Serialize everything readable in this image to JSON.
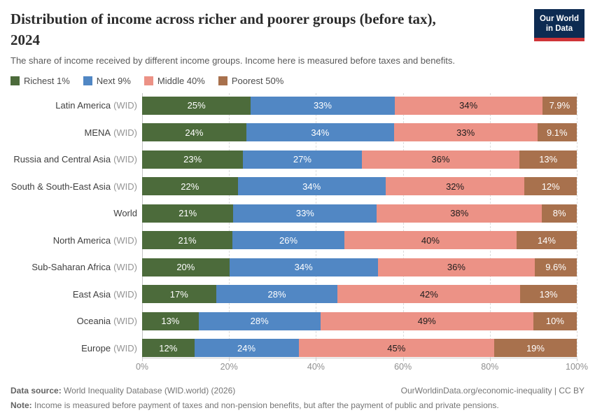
{
  "header": {
    "title_line1": "Distribution of income across richer and poorer groups (before tax),",
    "title_line2": "2024",
    "subtitle": "The share of income received by different income groups. Income here is measured before taxes and benefits.",
    "logo_line1": "Our World",
    "logo_line2": "in Data",
    "logo_bg_color": "#0d2b52",
    "logo_accent_color": "#cf3438"
  },
  "chart_data": {
    "type": "bar",
    "stacked": true,
    "orientation": "horizontal",
    "x_axis": {
      "min": 0,
      "max": 100,
      "ticks": [
        "0%",
        "20%",
        "40%",
        "60%",
        "80%",
        "100%"
      ],
      "grid": "dashed"
    },
    "legend_position": "top",
    "series": [
      {
        "name": "Richest 1%",
        "color": "#4c6b3b",
        "label_color": "#ffffff"
      },
      {
        "name": "Next 9%",
        "color": "#5187c4",
        "label_color": "#ffffff"
      },
      {
        "name": "Middle 40%",
        "color": "#ec9286",
        "label_color": "#1d1d1d"
      },
      {
        "name": "Poorest 50%",
        "color": "#a8714d",
        "label_color": "#ffffff"
      }
    ],
    "rows": [
      {
        "entity": "Latin America",
        "suffix": "(WID)",
        "values": [
          25,
          33,
          34,
          7.9
        ],
        "labels": [
          "25%",
          "33%",
          "34%",
          "7.9%"
        ]
      },
      {
        "entity": "MENA",
        "suffix": "(WID)",
        "values": [
          24,
          34,
          33,
          9.1
        ],
        "labels": [
          "24%",
          "34%",
          "33%",
          "9.1%"
        ]
      },
      {
        "entity": "Russia and Central Asia",
        "suffix": "(WID)",
        "values": [
          23,
          27,
          36,
          13
        ],
        "labels": [
          "23%",
          "27%",
          "36%",
          "13%"
        ]
      },
      {
        "entity": "South & South-East Asia",
        "suffix": "(WID)",
        "values": [
          22,
          34,
          32,
          12
        ],
        "labels": [
          "22%",
          "34%",
          "32%",
          "12%"
        ]
      },
      {
        "entity": "World",
        "suffix": "",
        "values": [
          21,
          33,
          38,
          8
        ],
        "labels": [
          "21%",
          "33%",
          "38%",
          "8%"
        ]
      },
      {
        "entity": "North America",
        "suffix": "(WID)",
        "values": [
          21,
          26,
          40,
          14
        ],
        "labels": [
          "21%",
          "26%",
          "40%",
          "14%"
        ]
      },
      {
        "entity": "Sub-Saharan Africa",
        "suffix": "(WID)",
        "values": [
          20,
          34,
          36,
          9.6
        ],
        "labels": [
          "20%",
          "34%",
          "36%",
          "9.6%"
        ]
      },
      {
        "entity": "East Asia",
        "suffix": "(WID)",
        "values": [
          17,
          28,
          42,
          13
        ],
        "labels": [
          "17%",
          "28%",
          "42%",
          "13%"
        ]
      },
      {
        "entity": "Oceania",
        "suffix": "(WID)",
        "values": [
          13,
          28,
          49,
          10
        ],
        "labels": [
          "13%",
          "28%",
          "49%",
          "10%"
        ]
      },
      {
        "entity": "Europe",
        "suffix": "(WID)",
        "values": [
          12,
          24,
          45,
          19
        ],
        "labels": [
          "12%",
          "24%",
          "45%",
          "19%"
        ]
      }
    ]
  },
  "footer": {
    "source_label": "Data source:",
    "source_text": " World Inequality Database (WID.world) (2026)",
    "link_text": "OurWorldinData.org/economic-inequality | CC BY",
    "note_label": "Note:",
    "note_text": " Income is measured before payment of taxes and non-pension benefits, but after the payment of public and private pensions."
  }
}
